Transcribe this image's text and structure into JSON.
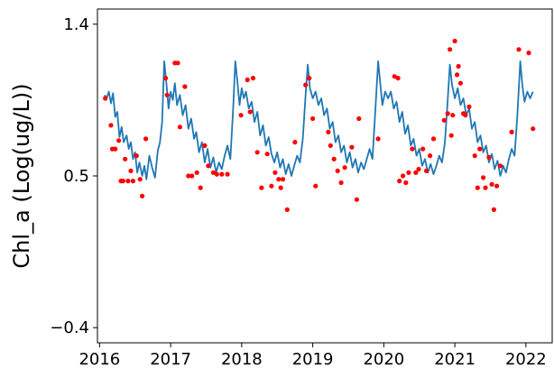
{
  "chart_data": {
    "type": "line",
    "title": "",
    "xlabel": "",
    "ylabel": "Chl_a (Log(ug/L))",
    "xlim": [
      2015.97,
      2022.37
    ],
    "ylim": [
      -0.49,
      1.49
    ],
    "grid": false,
    "legend": "none",
    "x_ticks": [
      {
        "value": 2016,
        "label": "2016"
      },
      {
        "value": 2017,
        "label": "2017"
      },
      {
        "value": 2018,
        "label": "2018"
      },
      {
        "value": 2019,
        "label": "2019"
      },
      {
        "value": 2020,
        "label": "2020"
      },
      {
        "value": 2021,
        "label": "2021"
      },
      {
        "value": 2022,
        "label": "2022"
      }
    ],
    "y_ticks": [
      {
        "value": -0.4,
        "label": "−0.4"
      },
      {
        "value": 0.5,
        "label": "0.5"
      },
      {
        "value": 1.4,
        "label": "1.4"
      }
    ],
    "series": [
      {
        "kind": "line",
        "color": "#1f77b4",
        "points": [
          [
            2016.07,
            0.98
          ],
          [
            2016.1,
            0.96
          ],
          [
            2016.13,
            1.0
          ],
          [
            2016.16,
            0.93
          ],
          [
            2016.19,
            0.99
          ],
          [
            2016.22,
            0.85
          ],
          [
            2016.25,
            0.88
          ],
          [
            2016.28,
            0.73
          ],
          [
            2016.31,
            0.79
          ],
          [
            2016.34,
            0.7
          ],
          [
            2016.38,
            0.74
          ],
          [
            2016.41,
            0.66
          ],
          [
            2016.44,
            0.7
          ],
          [
            2016.47,
            0.6
          ],
          [
            2016.5,
            0.64
          ],
          [
            2016.53,
            0.52
          ],
          [
            2016.56,
            0.58
          ],
          [
            2016.6,
            0.5
          ],
          [
            2016.63,
            0.56
          ],
          [
            2016.66,
            0.48
          ],
          [
            2016.7,
            0.62
          ],
          [
            2016.74,
            0.55
          ],
          [
            2016.78,
            0.49
          ],
          [
            2016.82,
            0.65
          ],
          [
            2016.85,
            0.7
          ],
          [
            2016.88,
            0.82
          ],
          [
            2016.91,
            1.18
          ],
          [
            2016.94,
            1.05
          ],
          [
            2016.97,
            0.9
          ],
          [
            2017.0,
            1.0
          ],
          [
            2017.03,
            0.95
          ],
          [
            2017.06,
            1.05
          ],
          [
            2017.09,
            0.92
          ],
          [
            2017.13,
            0.98
          ],
          [
            2017.17,
            0.86
          ],
          [
            2017.21,
            0.92
          ],
          [
            2017.25,
            0.78
          ],
          [
            2017.29,
            0.84
          ],
          [
            2017.33,
            0.72
          ],
          [
            2017.36,
            0.76
          ],
          [
            2017.4,
            0.64
          ],
          [
            2017.44,
            0.7
          ],
          [
            2017.48,
            0.58
          ],
          [
            2017.52,
            0.66
          ],
          [
            2017.56,
            0.55
          ],
          [
            2017.6,
            0.61
          ],
          [
            2017.64,
            0.52
          ],
          [
            2017.68,
            0.58
          ],
          [
            2017.72,
            0.54
          ],
          [
            2017.76,
            0.62
          ],
          [
            2017.8,
            0.68
          ],
          [
            2017.84,
            0.6
          ],
          [
            2017.88,
            0.9
          ],
          [
            2017.91,
            1.18
          ],
          [
            2017.94,
            1.06
          ],
          [
            2017.97,
            0.92
          ],
          [
            2018.0,
            1.02
          ],
          [
            2018.03,
            0.96
          ],
          [
            2018.06,
            1.0
          ],
          [
            2018.1,
            0.9
          ],
          [
            2018.14,
            0.94
          ],
          [
            2018.18,
            0.82
          ],
          [
            2018.22,
            0.88
          ],
          [
            2018.26,
            0.74
          ],
          [
            2018.3,
            0.8
          ],
          [
            2018.34,
            0.68
          ],
          [
            2018.38,
            0.73
          ],
          [
            2018.42,
            0.63
          ],
          [
            2018.46,
            0.58
          ],
          [
            2018.5,
            0.64
          ],
          [
            2018.54,
            0.55
          ],
          [
            2018.58,
            0.6
          ],
          [
            2018.62,
            0.51
          ],
          [
            2018.66,
            0.57
          ],
          [
            2018.7,
            0.5
          ],
          [
            2018.74,
            0.56
          ],
          [
            2018.78,
            0.62
          ],
          [
            2018.82,
            0.58
          ],
          [
            2018.86,
            0.72
          ],
          [
            2018.9,
            0.98
          ],
          [
            2018.93,
            1.16
          ],
          [
            2018.96,
            1.02
          ],
          [
            2019.0,
            0.96
          ],
          [
            2019.04,
            1.0
          ],
          [
            2019.08,
            0.92
          ],
          [
            2019.12,
            0.96
          ],
          [
            2019.16,
            0.86
          ],
          [
            2019.2,
            0.9
          ],
          [
            2019.24,
            0.78
          ],
          [
            2019.28,
            0.82
          ],
          [
            2019.32,
            0.7
          ],
          [
            2019.36,
            0.74
          ],
          [
            2019.4,
            0.64
          ],
          [
            2019.44,
            0.68
          ],
          [
            2019.48,
            0.58
          ],
          [
            2019.52,
            0.64
          ],
          [
            2019.56,
            0.55
          ],
          [
            2019.6,
            0.6
          ],
          [
            2019.64,
            0.52
          ],
          [
            2019.68,
            0.58
          ],
          [
            2019.72,
            0.54
          ],
          [
            2019.76,
            0.6
          ],
          [
            2019.8,
            0.66
          ],
          [
            2019.84,
            0.6
          ],
          [
            2019.88,
            0.88
          ],
          [
            2019.92,
            1.18
          ],
          [
            2019.95,
            1.05
          ],
          [
            2019.98,
            0.92
          ],
          [
            2020.02,
            1.0
          ],
          [
            2020.06,
            0.96
          ],
          [
            2020.1,
            1.0
          ],
          [
            2020.14,
            0.9
          ],
          [
            2020.18,
            0.94
          ],
          [
            2020.22,
            0.82
          ],
          [
            2020.26,
            0.88
          ],
          [
            2020.3,
            0.75
          ],
          [
            2020.34,
            0.8
          ],
          [
            2020.38,
            0.68
          ],
          [
            2020.42,
            0.72
          ],
          [
            2020.46,
            0.62
          ],
          [
            2020.5,
            0.66
          ],
          [
            2020.54,
            0.56
          ],
          [
            2020.58,
            0.6
          ],
          [
            2020.62,
            0.52
          ],
          [
            2020.66,
            0.57
          ],
          [
            2020.7,
            0.51
          ],
          [
            2020.74,
            0.56
          ],
          [
            2020.78,
            0.62
          ],
          [
            2020.82,
            0.58
          ],
          [
            2020.86,
            0.7
          ],
          [
            2020.9,
            0.95
          ],
          [
            2020.93,
            1.16
          ],
          [
            2020.96,
            1.04
          ],
          [
            2021.0,
            0.96
          ],
          [
            2021.04,
            1.02
          ],
          [
            2021.08,
            0.92
          ],
          [
            2021.12,
            0.96
          ],
          [
            2021.16,
            0.86
          ],
          [
            2021.2,
            0.9
          ],
          [
            2021.24,
            0.78
          ],
          [
            2021.28,
            0.82
          ],
          [
            2021.32,
            0.7
          ],
          [
            2021.36,
            0.74
          ],
          [
            2021.4,
            0.64
          ],
          [
            2021.44,
            0.68
          ],
          [
            2021.48,
            0.58
          ],
          [
            2021.52,
            0.63
          ],
          [
            2021.56,
            0.54
          ],
          [
            2021.6,
            0.59
          ],
          [
            2021.64,
            0.5
          ],
          [
            2021.68,
            0.56
          ],
          [
            2021.72,
            0.52
          ],
          [
            2021.76,
            0.6
          ],
          [
            2021.8,
            0.66
          ],
          [
            2021.84,
            0.62
          ],
          [
            2021.88,
            0.86
          ],
          [
            2021.92,
            1.18
          ],
          [
            2021.95,
            1.04
          ],
          [
            2021.98,
            0.94
          ],
          [
            2022.02,
            1.0
          ],
          [
            2022.06,
            0.96
          ],
          [
            2022.1,
            1.0
          ]
        ]
      },
      {
        "kind": "scatter",
        "color": "#ff0000",
        "points": [
          [
            2016.08,
            0.96
          ],
          [
            2016.16,
            0.8
          ],
          [
            2016.18,
            0.66
          ],
          [
            2016.22,
            0.66
          ],
          [
            2016.27,
            0.71
          ],
          [
            2016.3,
            0.47
          ],
          [
            2016.33,
            0.47
          ],
          [
            2016.36,
            0.6
          ],
          [
            2016.4,
            0.47
          ],
          [
            2016.44,
            0.53
          ],
          [
            2016.47,
            0.47
          ],
          [
            2016.52,
            0.62
          ],
          [
            2016.57,
            0.48
          ],
          [
            2016.6,
            0.38
          ],
          [
            2016.65,
            0.72
          ],
          [
            2016.93,
            1.08
          ],
          [
            2016.95,
            0.98
          ],
          [
            2017.06,
            1.17
          ],
          [
            2017.1,
            1.17
          ],
          [
            2017.13,
            0.79
          ],
          [
            2017.2,
            1.03
          ],
          [
            2017.25,
            0.5
          ],
          [
            2017.3,
            0.5
          ],
          [
            2017.37,
            0.52
          ],
          [
            2017.42,
            0.43
          ],
          [
            2017.48,
            0.68
          ],
          [
            2017.53,
            0.56
          ],
          [
            2017.6,
            0.52
          ],
          [
            2017.65,
            0.51
          ],
          [
            2017.72,
            0.51
          ],
          [
            2017.8,
            0.51
          ],
          [
            2017.99,
            0.86
          ],
          [
            2018.08,
            1.07
          ],
          [
            2018.12,
            0.88
          ],
          [
            2018.16,
            1.08
          ],
          [
            2018.22,
            0.64
          ],
          [
            2018.28,
            0.43
          ],
          [
            2018.36,
            0.63
          ],
          [
            2018.42,
            0.44
          ],
          [
            2018.47,
            0.52
          ],
          [
            2018.52,
            0.48
          ],
          [
            2018.55,
            0.43
          ],
          [
            2018.58,
            0.48
          ],
          [
            2018.64,
            0.3
          ],
          [
            2018.75,
            0.7
          ],
          [
            2018.9,
            1.04
          ],
          [
            2018.95,
            1.08
          ],
          [
            2019.0,
            0.84
          ],
          [
            2019.04,
            0.44
          ],
          [
            2019.22,
            0.76
          ],
          [
            2019.25,
            0.68
          ],
          [
            2019.3,
            0.6
          ],
          [
            2019.35,
            0.53
          ],
          [
            2019.4,
            0.46
          ],
          [
            2019.45,
            0.55
          ],
          [
            2019.55,
            0.67
          ],
          [
            2019.62,
            0.36
          ],
          [
            2019.65,
            0.84
          ],
          [
            2019.92,
            0.72
          ],
          [
            2020.15,
            1.09
          ],
          [
            2020.2,
            1.08
          ],
          [
            2020.22,
            0.47
          ],
          [
            2020.27,
            0.5
          ],
          [
            2020.31,
            0.46
          ],
          [
            2020.35,
            0.52
          ],
          [
            2020.4,
            0.66
          ],
          [
            2020.45,
            0.52
          ],
          [
            2020.49,
            0.54
          ],
          [
            2020.55,
            0.66
          ],
          [
            2020.6,
            0.53
          ],
          [
            2020.65,
            0.62
          ],
          [
            2020.7,
            0.72
          ],
          [
            2020.85,
            0.83
          ],
          [
            2020.9,
            0.87
          ],
          [
            2020.93,
            1.25
          ],
          [
            2020.95,
            0.74
          ],
          [
            2020.97,
            0.86
          ],
          [
            2021.0,
            1.3
          ],
          [
            2021.03,
            1.1
          ],
          [
            2021.05,
            1.15
          ],
          [
            2021.08,
            1.05
          ],
          [
            2021.12,
            0.87
          ],
          [
            2021.15,
            0.86
          ],
          [
            2021.2,
            0.91
          ],
          [
            2021.28,
            0.62
          ],
          [
            2021.32,
            0.43
          ],
          [
            2021.35,
            0.66
          ],
          [
            2021.4,
            0.49
          ],
          [
            2021.43,
            0.43
          ],
          [
            2021.48,
            0.61
          ],
          [
            2021.52,
            0.45
          ],
          [
            2021.55,
            0.3
          ],
          [
            2021.59,
            0.44
          ],
          [
            2021.64,
            0.56
          ],
          [
            2021.8,
            0.76
          ],
          [
            2021.9,
            1.25
          ],
          [
            2022.04,
            1.23
          ],
          [
            2022.1,
            0.78
          ]
        ]
      }
    ]
  }
}
